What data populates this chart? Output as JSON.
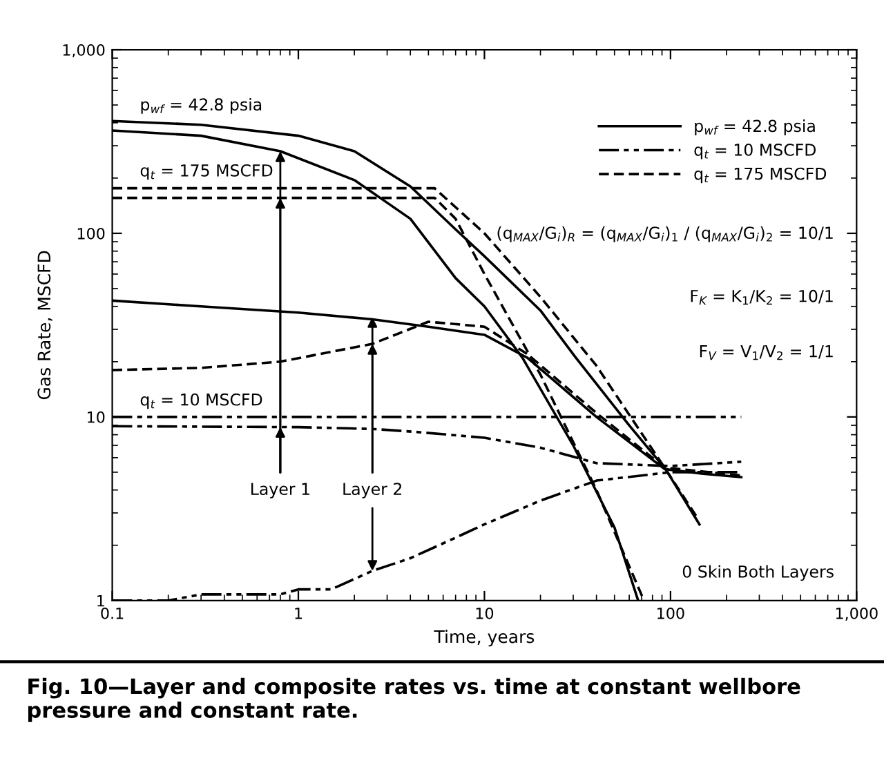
{
  "chart_data": {
    "type": "line",
    "title": "Fig. 10—Layer and composite rates vs. time at constant wellbore pressure and constant rate.",
    "xlabel": "Time, years",
    "ylabel": "Gas Rate, MSCFD",
    "log": "xy",
    "xlim": [
      0.1,
      1000
    ],
    "ylim": [
      1,
      1000
    ],
    "xticks": [
      {
        "value": 0.1,
        "label": "0.1"
      },
      1,
      10,
      100,
      {
        "value": 1000,
        "label": "1,000"
      }
    ],
    "yticks": [
      1,
      10,
      100,
      {
        "value": 1000,
        "label": "1,000"
      }
    ],
    "grid": false,
    "legend": "top right",
    "marker": "none",
    "series": [
      {
        "name": "p$_{wf}$ = 42.8 psia",
        "color": "#000000",
        "line_style": "solid",
        "x": [
          0.1,
          0.3,
          1,
          2,
          4,
          7,
          10,
          20,
          31,
          60,
          94,
          143
        ],
        "values": [
          409,
          390,
          340,
          280,
          180,
          105,
          75,
          38,
          21,
          9,
          5.2,
          2.6
        ]
      },
      {
        "name": "q$_{t}$ = 10 MSCFD",
        "color": "#000000",
        "line_style": "dashdot",
        "x": [
          0.1,
          240
        ],
        "values": [
          10,
          10
        ]
      },
      {
        "name": "q$_{t}$ = 175 MSCFD",
        "color": "#000000",
        "line_style": "dashed",
        "x": [
          0.1,
          5.4,
          10,
          20,
          40,
          94,
          140
        ],
        "values": [
          176,
          176,
          100,
          45,
          19,
          5.2,
          2.8
        ]
      },
      {
        "color": "#000000",
        "line_style": "solid",
        "x": [
          0.1,
          0.3,
          0.8,
          2,
          4,
          7,
          10,
          16,
          30,
          50,
          67
        ],
        "values": [
          363,
          340,
          280,
          195,
          120,
          57,
          40,
          21,
          7,
          2.5,
          1
        ]
      },
      {
        "color": "#000000",
        "line_style": "solid",
        "x": [
          0.1,
          0.3,
          1,
          2.5,
          5,
          10,
          17,
          40,
          93,
          150,
          240
        ],
        "values": [
          43,
          40,
          37,
          34,
          31,
          28,
          21,
          10,
          5.2,
          4.9,
          4.7
        ]
      },
      {
        "color": "#000000",
        "line_style": "dashdot",
        "x": [
          0.1,
          1,
          2.5,
          4.2,
          10,
          20,
          40,
          100,
          240
        ],
        "values": [
          8.9,
          8.8,
          8.6,
          8.3,
          7.7,
          6.8,
          5.6,
          5.4,
          5.7
        ]
      },
      {
        "color": "#000000",
        "line_style": "dashdot",
        "x": [
          0.1,
          0.2,
          0.3,
          0.8,
          1,
          1.5,
          2.5,
          4,
          7,
          10,
          20,
          40,
          100,
          240
        ],
        "values": [
          1,
          1,
          1.08,
          1.08,
          1.15,
          1.15,
          1.45,
          1.7,
          2.2,
          2.6,
          3.5,
          4.5,
          5,
          5
        ]
      },
      {
        "color": "#000000",
        "line_style": "dashed",
        "x": [
          0.1,
          5.4,
          7,
          10,
          20,
          40,
          72
        ],
        "values": [
          156,
          156,
          120,
          60,
          17,
          4,
          1
        ]
      },
      {
        "color": "#000000",
        "line_style": "dashed",
        "x": [
          0.1,
          0.3,
          0.8,
          2.5,
          5,
          10,
          17,
          40,
          93,
          240
        ],
        "values": [
          18,
          18.5,
          20,
          25,
          33,
          31,
          22,
          10.5,
          5.3,
          4.8
        ]
      }
    ],
    "annotations": [
      "p$_{wf}$ = 42.8 psia",
      "q$_{t}$ = 175 MSCFD",
      "q$_{t}$ = 10 MSCFD",
      {
        "text": "Layer 1",
        "x": 0.8,
        "y": 280
      },
      {
        "text": "Layer 2",
        "x": 2.5,
        "y": 35
      },
      "(q$_{MAX}$/G$_{i}$)$_{R}$ = (q$_{MAX}$/G$_{i}$)$_{1}$ / (q$_{MAX}$/G$_{i}$)$_{2}$ = 10/1",
      "F$_{K}$ = K$_{1}$/K$_{2}$ = 10/1",
      "F$_{V}$ = V$_{1}$/V$_{2}$ = 1/1",
      "0 Skin Both Layers"
    ]
  }
}
